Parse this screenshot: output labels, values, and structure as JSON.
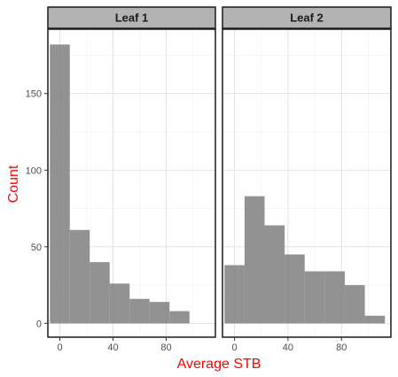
{
  "chart_data": {
    "type": "bar",
    "subtype": "faceted-histogram",
    "xlabel": "Average STB",
    "ylabel": "Count",
    "axis_title_color": "#ff0000",
    "bar_color": "#7f7f7f",
    "strip_fill": "#b3b3b3",
    "grid": true,
    "ylim": [
      -9,
      192
    ],
    "yticks": [
      0,
      50,
      100,
      150
    ],
    "panels": [
      {
        "label": "Leaf 1",
        "xlim": [
          -9,
          117
        ],
        "xticks": [
          0,
          40,
          80
        ],
        "bins": [
          {
            "x0": -7.5,
            "x1": 7.5,
            "count": 182
          },
          {
            "x0": 7.5,
            "x1": 22.5,
            "count": 61
          },
          {
            "x0": 22.5,
            "x1": 37.5,
            "count": 40
          },
          {
            "x0": 37.5,
            "x1": 52.5,
            "count": 26
          },
          {
            "x0": 52.5,
            "x1": 67.5,
            "count": 16
          },
          {
            "x0": 67.5,
            "x1": 82.5,
            "count": 14
          },
          {
            "x0": 82.5,
            "x1": 97.5,
            "count": 8
          }
        ]
      },
      {
        "label": "Leaf 2",
        "xlim": [
          -9,
          117
        ],
        "xticks": [
          0,
          40,
          80
        ],
        "bins": [
          {
            "x0": -7.5,
            "x1": 7.5,
            "count": 38
          },
          {
            "x0": 7.5,
            "x1": 22.5,
            "count": 83
          },
          {
            "x0": 22.5,
            "x1": 37.5,
            "count": 64
          },
          {
            "x0": 37.5,
            "x1": 52.5,
            "count": 45
          },
          {
            "x0": 52.5,
            "x1": 67.5,
            "count": 34
          },
          {
            "x0": 67.5,
            "x1": 82.5,
            "count": 34
          },
          {
            "x0": 82.5,
            "x1": 97.5,
            "count": 25
          },
          {
            "x0": 97.5,
            "x1": 112.5,
            "count": 5
          }
        ]
      }
    ]
  }
}
